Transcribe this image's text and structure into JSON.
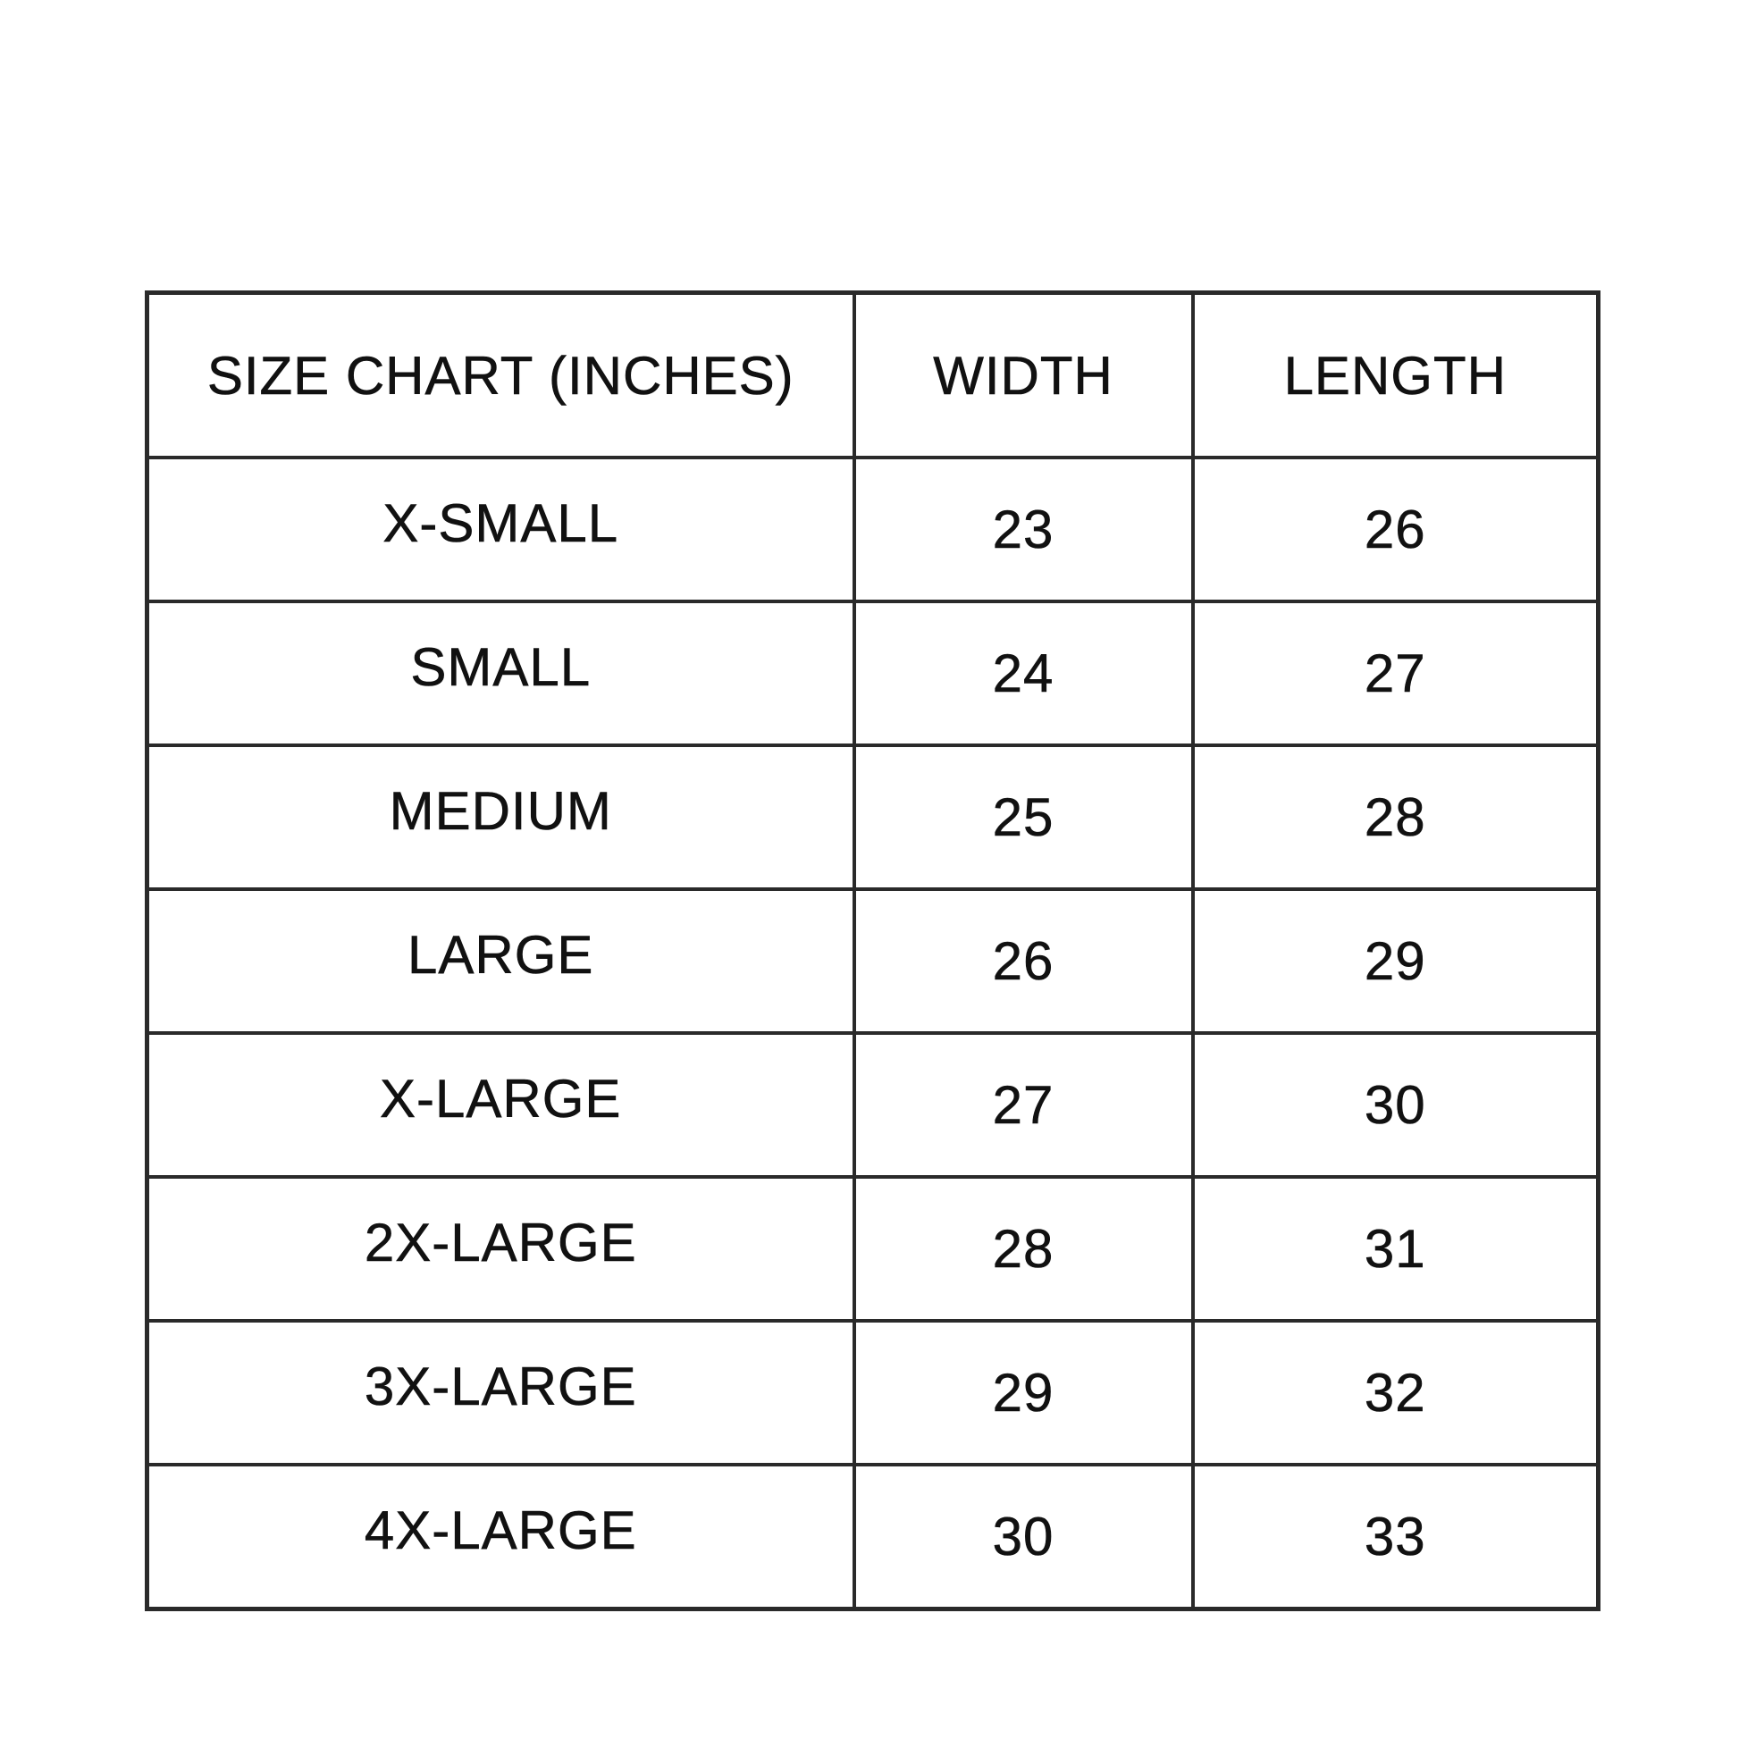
{
  "table": {
    "headers": [
      "SIZE CHART (INCHES)",
      "WIDTH",
      "LENGTH"
    ],
    "rows": [
      {
        "size": "X-SMALL",
        "width": "23",
        "length": "26"
      },
      {
        "size": "SMALL",
        "width": "24",
        "length": "27"
      },
      {
        "size": "MEDIUM",
        "width": "25",
        "length": "28"
      },
      {
        "size": "LARGE",
        "width": "26",
        "length": "29"
      },
      {
        "size": "X-LARGE",
        "width": "27",
        "length": "30"
      },
      {
        "size": "2X-LARGE",
        "width": "28",
        "length": "31"
      },
      {
        "size": "3X-LARGE",
        "width": "29",
        "length": "32"
      },
      {
        "size": "4X-LARGE",
        "width": "30",
        "length": "33"
      }
    ]
  }
}
